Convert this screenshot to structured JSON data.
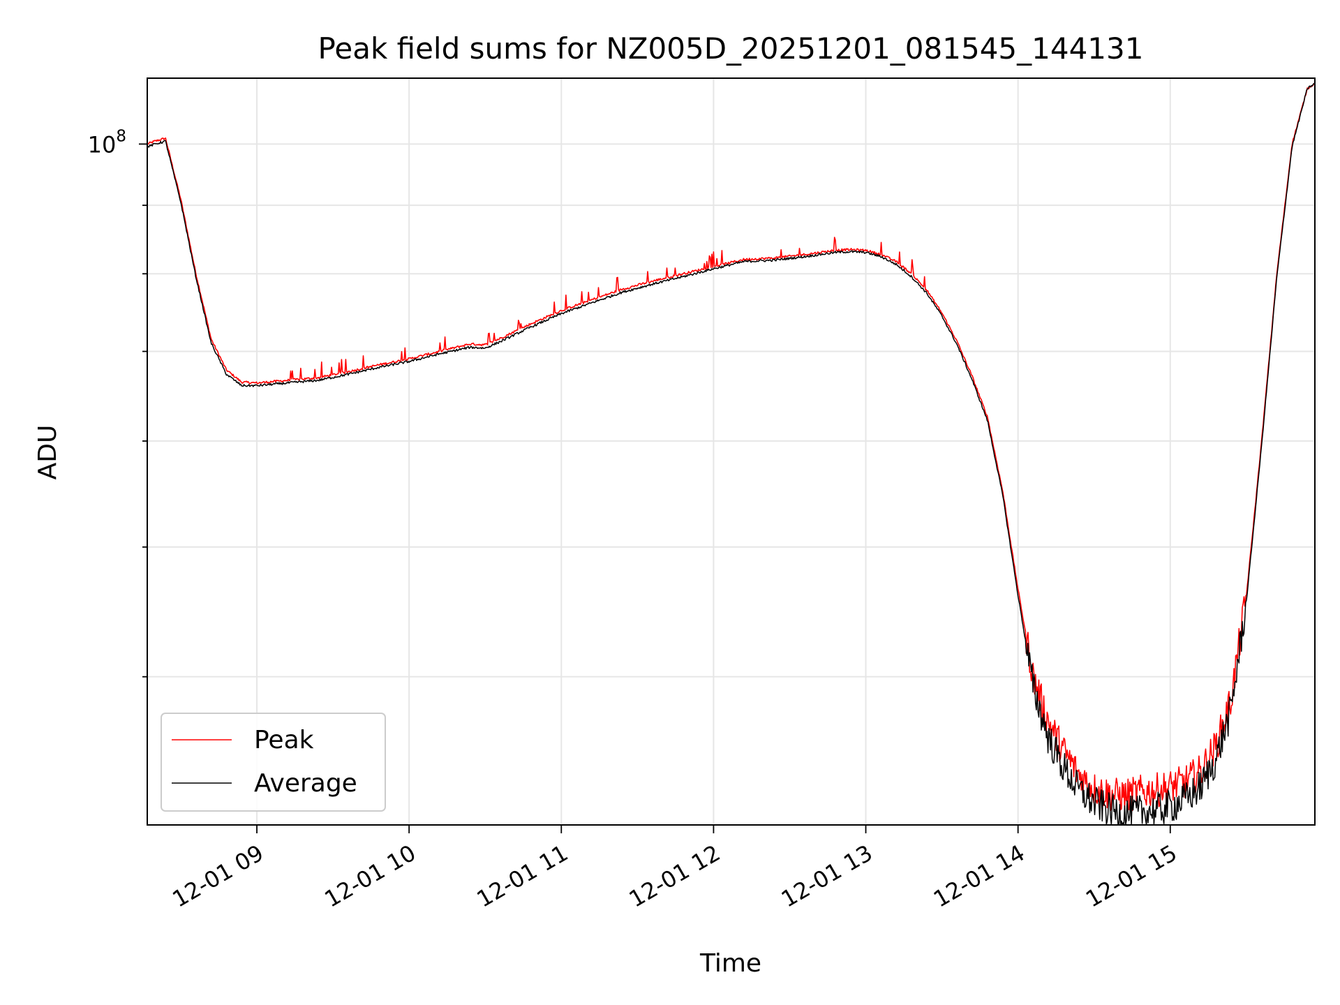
{
  "chart_data": {
    "type": "line",
    "title": "Peak field sums for NZ005D_20251201_081545_144131",
    "xlabel": "Time",
    "ylabel": "ADU",
    "yscale": "log",
    "x_unit": "hours since 12-01 00:00",
    "xlim": [
      8.28,
      15.95
    ],
    "ylim": [
      31000000,
      112000000
    ],
    "grid": true,
    "legend_location": "lower left",
    "x_ticks": [
      {
        "value": 9,
        "label": "12-01 09"
      },
      {
        "value": 10,
        "label": "12-01 10"
      },
      {
        "value": 11,
        "label": "12-01 11"
      },
      {
        "value": 12,
        "label": "12-01 12"
      },
      {
        "value": 13,
        "label": "12-01 13"
      },
      {
        "value": 14,
        "label": "12-01 14"
      },
      {
        "value": 15,
        "label": "12-01 15"
      }
    ],
    "y_major_ticks": [
      {
        "value": 100000000,
        "base": "10",
        "exponent": "8"
      }
    ],
    "y_minor_ticks": [
      40000000,
      50000000,
      60000000,
      70000000,
      80000000,
      90000000
    ],
    "series": [
      {
        "name": "Peak",
        "color": "#ff0000",
        "x": [
          8.28,
          8.33,
          8.4,
          8.5,
          8.6,
          8.7,
          8.8,
          8.9,
          9.0,
          9.2,
          9.4,
          9.6,
          9.8,
          10.0,
          10.2,
          10.4,
          10.5,
          10.6,
          10.8,
          11.0,
          11.2,
          11.4,
          11.6,
          11.8,
          12.0,
          12.2,
          12.4,
          12.6,
          12.8,
          12.9,
          13.0,
          13.1,
          13.2,
          13.3,
          13.4,
          13.5,
          13.6,
          13.7,
          13.8,
          13.9,
          14.0,
          14.1,
          14.2,
          14.3,
          14.4,
          14.5,
          14.6,
          14.7,
          14.8,
          14.9,
          15.0,
          15.1,
          15.2,
          15.3,
          15.4,
          15.5,
          15.6,
          15.7,
          15.8,
          15.9,
          15.95
        ],
        "values": [
          100000000,
          100500000,
          101000000,
          91000000,
          80000000,
          71500000,
          67800000,
          66400000,
          66300000,
          66600000,
          66900000,
          67600000,
          68400000,
          69100000,
          70000000,
          70900000,
          70800000,
          71600000,
          73400000,
          75100000,
          76500000,
          77900000,
          79000000,
          80000000,
          81000000,
          82000000,
          82200000,
          82700000,
          83300000,
          83400000,
          83300000,
          82700000,
          81700000,
          80000000,
          77800000,
          74800000,
          71200000,
          67000000,
          62500000,
          55000000,
          46500000,
          40000000,
          37000000,
          35200000,
          33800000,
          33000000,
          32700000,
          32600000,
          32800000,
          32900000,
          33100000,
          33400000,
          34000000,
          35500000,
          38500000,
          46000000,
          60000000,
          80000000,
          100000000,
          110000000,
          111000000
        ]
      },
      {
        "name": "Average",
        "color": "#000000",
        "x": [
          8.28,
          8.33,
          8.4,
          8.5,
          8.6,
          8.7,
          8.8,
          8.9,
          9.0,
          9.2,
          9.4,
          9.6,
          9.8,
          10.0,
          10.2,
          10.4,
          10.5,
          10.6,
          10.8,
          11.0,
          11.2,
          11.4,
          11.6,
          11.8,
          12.0,
          12.2,
          12.4,
          12.6,
          12.8,
          12.9,
          13.0,
          13.1,
          13.2,
          13.3,
          13.4,
          13.5,
          13.6,
          13.7,
          13.8,
          13.9,
          14.0,
          14.1,
          14.2,
          14.3,
          14.4,
          14.5,
          14.6,
          14.7,
          14.8,
          14.9,
          15.0,
          15.1,
          15.2,
          15.3,
          15.4,
          15.5,
          15.6,
          15.7,
          15.8,
          15.9,
          15.95
        ],
        "values": [
          99500000,
          100000000,
          100500000,
          90500000,
          79500000,
          71000000,
          67300000,
          66000000,
          66000000,
          66300000,
          66600000,
          67300000,
          68100000,
          68800000,
          69700000,
          70500000,
          70400000,
          71200000,
          73000000,
          74700000,
          76100000,
          77500000,
          78600000,
          79600000,
          80700000,
          81700000,
          81900000,
          82400000,
          83000000,
          83100000,
          83000000,
          82400000,
          81300000,
          79600000,
          77400000,
          74400000,
          70800000,
          66600000,
          62100000,
          54600000,
          46000000,
          39300000,
          36000000,
          34200000,
          32900000,
          32200000,
          31800000,
          31600000,
          31700000,
          31800000,
          32000000,
          32400000,
          33100000,
          34700000,
          37800000,
          45500000,
          59500000,
          79500000,
          99500000,
          110000000,
          111000000
        ]
      }
    ]
  }
}
